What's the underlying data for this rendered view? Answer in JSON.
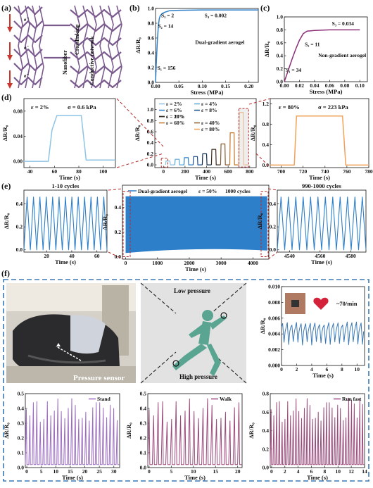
{
  "panel_labels": {
    "a": "(a)",
    "b": "(b)",
    "c": "(c)",
    "d": "(d)",
    "e": "(e)",
    "f": "(f)"
  },
  "colors": {
    "blue": "#2e7fc9",
    "purple": "#8a2e78",
    "lightblue": "#8ec3e6",
    "orange": "#f0a15a",
    "dash_red": "#b32a2a",
    "dash_blue": "#3a78b5",
    "heart": "#d4223a",
    "fig_purple": "#9b6cc0",
    "fig_mauve": "#9b4b7b",
    "network": "#7b5b8e"
  },
  "panel_a": {
    "labels": [
      "Nanofiber",
      "Crosslinking",
      "Conductive network"
    ],
    "electron_label": "e⁻"
  },
  "chart_data": [
    {
      "id": "b",
      "type": "line",
      "title": "",
      "xlabel": "Stress (MPa)",
      "ylabel": "ΔR/R₀",
      "xlim": [
        0,
        0.22
      ],
      "ylim": [
        0,
        1.0
      ],
      "xticks": [
        "0.00",
        "0.05",
        "0.10",
        "0.15",
        "0.20"
      ],
      "yticks": [
        "0.0",
        "0.2",
        "0.4",
        "0.6",
        "0.8",
        "1.0"
      ],
      "series": [
        {
          "x": [
            0,
            0.002,
            0.004,
            0.006,
            0.008,
            0.01,
            0.014,
            0.02,
            0.03,
            0.05,
            0.1,
            0.15,
            0.22
          ],
          "y": [
            0,
            0.31,
            0.58,
            0.76,
            0.86,
            0.9,
            0.93,
            0.95,
            0.97,
            0.975,
            0.98,
            0.98,
            0.98
          ]
        }
      ],
      "annotations": [
        "S₁ = 156",
        "S₂ = 14",
        "S₃ = 2",
        "S₄ = 0.002",
        "Dual-gradient aerogel"
      ]
    },
    {
      "id": "c",
      "type": "line",
      "title": "",
      "xlabel": "Stress (MPa)",
      "ylabel": "ΔR/R₀",
      "xlim": [
        0,
        0.11
      ],
      "ylim": [
        0,
        1.0
      ],
      "xticks": [
        "0.00",
        "0.02",
        "0.04",
        "0.06",
        "0.08",
        "0.10"
      ],
      "yticks": [
        "0.0",
        "0.2",
        "0.4",
        "0.6",
        "0.8",
        "1.0"
      ],
      "series": [
        {
          "x": [
            0,
            0.005,
            0.01,
            0.015,
            0.02,
            0.025,
            0.03,
            0.04,
            0.06,
            0.08,
            0.1
          ],
          "y": [
            0,
            0.17,
            0.34,
            0.5,
            0.64,
            0.74,
            0.78,
            0.79,
            0.8,
            0.8,
            0.8
          ]
        }
      ],
      "annotations": [
        "S₁ = 34",
        "S₂ = 11",
        "S₃ = 0.034",
        "Non-gradient aerogel"
      ]
    },
    {
      "id": "d1",
      "type": "line",
      "xlabel": "Time (s)",
      "ylabel": "ΔR/R₀",
      "xlim": [
        35,
        110
      ],
      "ylim": [
        -0.01,
        0.1
      ],
      "xticks": [
        "40",
        "60",
        "80",
        "100"
      ],
      "yticks": [
        "0.00",
        "0.04",
        "0.08"
      ],
      "series": [
        {
          "x": [
            35,
            55,
            58,
            62,
            82,
            86,
            110
          ],
          "y": [
            0.0,
            0.0,
            0.05,
            0.073,
            0.073,
            0.002,
            0.002
          ]
        }
      ],
      "annotations": [
        "ε = 2%",
        "σ = 0.6 kPa"
      ]
    },
    {
      "id": "d2",
      "type": "line",
      "xlabel": "Time (s)",
      "ylabel": "ΔR/R₀",
      "xlim": [
        -80,
        860
      ],
      "ylim": [
        -0.05,
        1.2
      ],
      "xticks": [
        "0",
        "200",
        "400",
        "600",
        "800"
      ],
      "yticks": [
        "0.0",
        "0.2",
        "0.4",
        "0.6",
        "0.8",
        "1.0"
      ],
      "series": [
        {
          "name": "ε = 2%",
          "value": 0.07
        },
        {
          "name": "ε = 4%",
          "value": 0.1
        },
        {
          "name": "ε = 6%",
          "value": 0.13
        },
        {
          "name": "ε = 8%",
          "value": 0.15
        },
        {
          "name": "ε = 10%",
          "value": 0.2
        },
        {
          "name": "ε = 20%",
          "value": 0.28
        },
        {
          "name": "ε = 40%",
          "value": 0.38
        },
        {
          "name": "ε = 60%",
          "value": 0.58
        },
        {
          "name": "ε = 80%",
          "value": 0.95
        }
      ]
    },
    {
      "id": "d3",
      "type": "line",
      "xlabel": "Time (s)",
      "ylabel": "ΔR/R₀",
      "xlim": [
        690,
        780
      ],
      "ylim": [
        -0.05,
        1.3
      ],
      "xticks": [
        "700",
        "720",
        "740",
        "760",
        "780"
      ],
      "yticks": [
        "0.0",
        "0.4",
        "0.8",
        "1.2"
      ],
      "series": [
        {
          "x": [
            690,
            712,
            714,
            756,
            759,
            780
          ],
          "y": [
            0,
            0,
            0.96,
            0.96,
            0,
            0
          ]
        }
      ],
      "annotations": [
        "ε = 80%",
        "σ = 223 kPa"
      ]
    },
    {
      "id": "e1",
      "type": "line",
      "xlabel": "Time (s)",
      "ylabel": "ΔR/R₀",
      "xlim": [
        2,
        68
      ],
      "ylim": [
        -0.02,
        0.52
      ],
      "xticks": [
        "20",
        "40",
        "60"
      ],
      "yticks": [
        "0.0",
        "0.2",
        "0.4"
      ],
      "cycles": 13,
      "peak": 0.46,
      "annotations": [
        "1-10 cycles"
      ]
    },
    {
      "id": "e2",
      "type": "area",
      "xlabel": "Time (s)",
      "ylabel": "ΔR/R₀",
      "xlim": [
        -100,
        4500
      ],
      "ylim": [
        -0.02,
        0.58
      ],
      "xticks": [
        "0",
        "1000",
        "2000",
        "3000",
        "4000"
      ],
      "yticks": [
        "0.0",
        "0.2",
        "0.4"
      ],
      "band": {
        "top": 0.49,
        "bottom_start": 0.03,
        "bottom_end": 0.05
      },
      "legend": [
        "Dual-gradient aerogel",
        "ε = 50%",
        "1000 cycles"
      ]
    },
    {
      "id": "e3",
      "type": "line",
      "xlabel": "Time (s)",
      "ylabel": "ΔR/R₀",
      "xlim": [
        4532,
        4590
      ],
      "ylim": [
        -0.02,
        0.52
      ],
      "xticks": [
        "4540",
        "4560",
        "4580"
      ],
      "yticks": [
        "0.0",
        "0.2",
        "0.4"
      ],
      "cycles": 12,
      "peak": 0.46,
      "annotations": [
        "990-1000 cycles"
      ]
    },
    {
      "id": "f1",
      "type": "line",
      "xlabel": "Time (s)",
      "ylabel": "ΔR/R₀",
      "xlim": [
        0,
        11
      ],
      "ylim": [
        0,
        0.01
      ],
      "xticks": [
        "0",
        "2",
        "4",
        "6",
        "8",
        "10"
      ],
      "yticks": [
        "0.000",
        "0.002",
        "0.004",
        "0.006",
        "0.008",
        "0.010"
      ],
      "pulses": 18,
      "base": 0.0041,
      "amp": 0.0011,
      "annotations": [
        "~70/min"
      ]
    },
    {
      "id": "f2",
      "type": "line",
      "xlabel": "Time (s)",
      "ylabel": "ΔR/R₀",
      "xlim": [
        -0.5,
        32
      ],
      "ylim": [
        0,
        0.5
      ],
      "xticks": [
        "0",
        "5",
        "10",
        "15",
        "20",
        "25",
        "30"
      ],
      "yticks": [
        "0.0",
        "0.1",
        "0.2",
        "0.3",
        "0.4",
        "0.5"
      ],
      "pulses": 27,
      "legend": [
        "Stand"
      ]
    },
    {
      "id": "f3",
      "type": "line",
      "xlabel": "Time (s)",
      "ylabel": "ΔR/R₀",
      "xlim": [
        -0.3,
        21
      ],
      "ylim": [
        0,
        0.5
      ],
      "xticks": [
        "0",
        "5",
        "10",
        "15",
        "20"
      ],
      "yticks": [
        "0.0",
        "0.1",
        "0.2",
        "0.3",
        "0.4",
        "0.5"
      ],
      "pulses": 21,
      "legend": [
        "Walk"
      ]
    },
    {
      "id": "f4",
      "type": "line",
      "xlabel": "Time (s)",
      "ylabel": "ΔR/R₀",
      "xlim": [
        -0.2,
        14
      ],
      "ylim": [
        0,
        0.8
      ],
      "xticks": [
        "0",
        "2",
        "4",
        "6",
        "8",
        "10",
        "12",
        "14"
      ],
      "yticks": [
        "0.0",
        "0.2",
        "0.4",
        "0.6",
        "0.8"
      ],
      "pulses": 34,
      "legend": [
        "Run fast"
      ]
    }
  ],
  "panel_f": {
    "photo_label": "Pressure sensor",
    "runner_low": "Low pressure",
    "runner_high": "High pressure"
  }
}
